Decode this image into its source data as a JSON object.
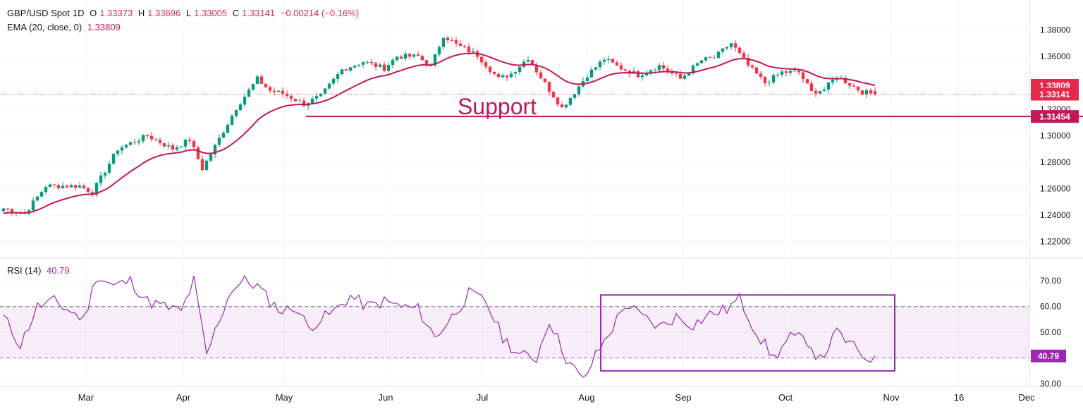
{
  "chart_data": [
    {
      "type": "candlestick",
      "symbol": "GBP/USD Spot",
      "interval": "1D",
      "legend": {
        "o_label": "O",
        "o": "1.33373",
        "h_label": "H",
        "h": "1.33696",
        "l_label": "L",
        "l": "1.33005",
        "c_label": "C",
        "c": "1.33141",
        "change": "−0.00214 (−0.16%)"
      },
      "indicator_label": "EMA (20, close, 0)",
      "indicator_value": "1.33809",
      "ylim": [
        1.21,
        1.384
      ],
      "y_ticks": [
        "1.38000",
        "1.36000",
        "1.34000",
        "1.32000",
        "1.30000",
        "1.28000",
        "1.26000",
        "1.24000",
        "1.22000"
      ],
      "x_ticks": [
        "Mar",
        "Apr",
        "May",
        "Jun",
        "Jul",
        "Aug",
        "Sep",
        "Oct",
        "Nov",
        "16",
        "Dec"
      ],
      "price_labels": [
        {
          "text": "1.33809",
          "value": 1.33809,
          "color": "#e5294b"
        },
        {
          "text": "1.33141",
          "value": 1.33141,
          "color": "#e5294b"
        },
        {
          "text": "1.31454",
          "value": 1.31454,
          "color": "#c2185b"
        }
      ],
      "support": {
        "label": "Support",
        "value": 1.31454,
        "color": "#c2185b"
      },
      "last_close": 1.33141,
      "ema_color": "#c2185b",
      "up_color": "#089981",
      "down_color": "#f23645",
      "anchors": [
        {
          "i": 0,
          "v": 1.245
        },
        {
          "i": 5,
          "v": 1.241
        },
        {
          "i": 10,
          "v": 1.262
        },
        {
          "i": 18,
          "v": 1.262
        },
        {
          "i": 21,
          "v": 1.257
        },
        {
          "i": 27,
          "v": 1.29
        },
        {
          "i": 34,
          "v": 1.3
        },
        {
          "i": 40,
          "v": 1.29
        },
        {
          "i": 44,
          "v": 1.297
        },
        {
          "i": 47,
          "v": 1.275
        },
        {
          "i": 50,
          "v": 1.292
        },
        {
          "i": 55,
          "v": 1.321
        },
        {
          "i": 60,
          "v": 1.343
        },
        {
          "i": 63,
          "v": 1.334
        },
        {
          "i": 66,
          "v": 1.332
        },
        {
          "i": 71,
          "v": 1.324
        },
        {
          "i": 75,
          "v": 1.33
        },
        {
          "i": 80,
          "v": 1.35
        },
        {
          "i": 85,
          "v": 1.356
        },
        {
          "i": 90,
          "v": 1.351
        },
        {
          "i": 93,
          "v": 1.36
        },
        {
          "i": 98,
          "v": 1.36
        },
        {
          "i": 101,
          "v": 1.352
        },
        {
          "i": 104,
          "v": 1.376
        },
        {
          "i": 107,
          "v": 1.369
        },
        {
          "i": 112,
          "v": 1.361
        },
        {
          "i": 117,
          "v": 1.343
        },
        {
          "i": 120,
          "v": 1.347
        },
        {
          "i": 124,
          "v": 1.359
        },
        {
          "i": 127,
          "v": 1.344
        },
        {
          "i": 132,
          "v": 1.321
        },
        {
          "i": 135,
          "v": 1.333
        },
        {
          "i": 138,
          "v": 1.346
        },
        {
          "i": 142,
          "v": 1.358
        },
        {
          "i": 146,
          "v": 1.351
        },
        {
          "i": 150,
          "v": 1.346
        },
        {
          "i": 155,
          "v": 1.353
        },
        {
          "i": 160,
          "v": 1.343
        },
        {
          "i": 165,
          "v": 1.357
        },
        {
          "i": 168,
          "v": 1.359
        },
        {
          "i": 172,
          "v": 1.37
        },
        {
          "i": 176,
          "v": 1.353
        },
        {
          "i": 180,
          "v": 1.34
        },
        {
          "i": 184,
          "v": 1.348
        },
        {
          "i": 188,
          "v": 1.348
        },
        {
          "i": 191,
          "v": 1.333
        },
        {
          "i": 194,
          "v": 1.335
        },
        {
          "i": 197,
          "v": 1.345
        },
        {
          "i": 200,
          "v": 1.339
        },
        {
          "i": 203,
          "v": 1.333
        },
        {
          "i": 206,
          "v": 1.33141
        }
      ],
      "n_candles": 207
    },
    {
      "type": "line",
      "title": "RSI (14)",
      "value": "40.79",
      "ylim": [
        27,
        75
      ],
      "y_ticks": [
        70,
        60,
        50,
        40,
        30
      ],
      "y_tick_labels": [
        "70.00",
        "60.00",
        "50.00",
        "40.00",
        "30.00"
      ],
      "band": [
        40,
        60
      ],
      "last_value": 40.79,
      "last_label": "40.79",
      "line_color": "#9c27b0",
      "highlight_box": {
        "from_index": 142,
        "to_index": 210,
        "from_value": 35,
        "to_value": 64.5
      },
      "anchors": [
        {
          "i": 0,
          "v": 56
        },
        {
          "i": 4,
          "v": 45
        },
        {
          "i": 8,
          "v": 60
        },
        {
          "i": 12,
          "v": 62
        },
        {
          "i": 16,
          "v": 58
        },
        {
          "i": 19,
          "v": 55
        },
        {
          "i": 22,
          "v": 72
        },
        {
          "i": 26,
          "v": 68
        },
        {
          "i": 30,
          "v": 70
        },
        {
          "i": 34,
          "v": 62
        },
        {
          "i": 38,
          "v": 60
        },
        {
          "i": 42,
          "v": 58
        },
        {
          "i": 45,
          "v": 70
        },
        {
          "i": 48,
          "v": 41
        },
        {
          "i": 51,
          "v": 55
        },
        {
          "i": 54,
          "v": 67
        },
        {
          "i": 57,
          "v": 70
        },
        {
          "i": 60,
          "v": 68
        },
        {
          "i": 63,
          "v": 62
        },
        {
          "i": 66,
          "v": 58
        },
        {
          "i": 69,
          "v": 60
        },
        {
          "i": 72,
          "v": 52
        },
        {
          "i": 75,
          "v": 55
        },
        {
          "i": 78,
          "v": 58
        },
        {
          "i": 82,
          "v": 64
        },
        {
          "i": 86,
          "v": 60
        },
        {
          "i": 90,
          "v": 62
        },
        {
          "i": 94,
          "v": 60
        },
        {
          "i": 98,
          "v": 59
        },
        {
          "i": 102,
          "v": 48
        },
        {
          "i": 106,
          "v": 56
        },
        {
          "i": 110,
          "v": 65
        },
        {
          "i": 114,
          "v": 62
        },
        {
          "i": 118,
          "v": 48
        },
        {
          "i": 122,
          "v": 41
        },
        {
          "i": 126,
          "v": 40
        },
        {
          "i": 129,
          "v": 55
        },
        {
          "i": 133,
          "v": 40
        },
        {
          "i": 137,
          "v": 31
        },
        {
          "i": 140,
          "v": 41
        },
        {
          "i": 144,
          "v": 52
        },
        {
          "i": 147,
          "v": 61
        },
        {
          "i": 151,
          "v": 56
        },
        {
          "i": 155,
          "v": 52
        },
        {
          "i": 159,
          "v": 56
        },
        {
          "i": 163,
          "v": 53
        },
        {
          "i": 167,
          "v": 57
        },
        {
          "i": 171,
          "v": 59
        },
        {
          "i": 174,
          "v": 63
        },
        {
          "i": 178,
          "v": 50
        },
        {
          "i": 182,
          "v": 40
        },
        {
          "i": 186,
          "v": 48
        },
        {
          "i": 190,
          "v": 47
        },
        {
          "i": 193,
          "v": 39
        },
        {
          "i": 197,
          "v": 50
        },
        {
          "i": 201,
          "v": 44
        },
        {
          "i": 204,
          "v": 40
        },
        {
          "i": 206,
          "v": 40.79
        }
      ]
    }
  ]
}
